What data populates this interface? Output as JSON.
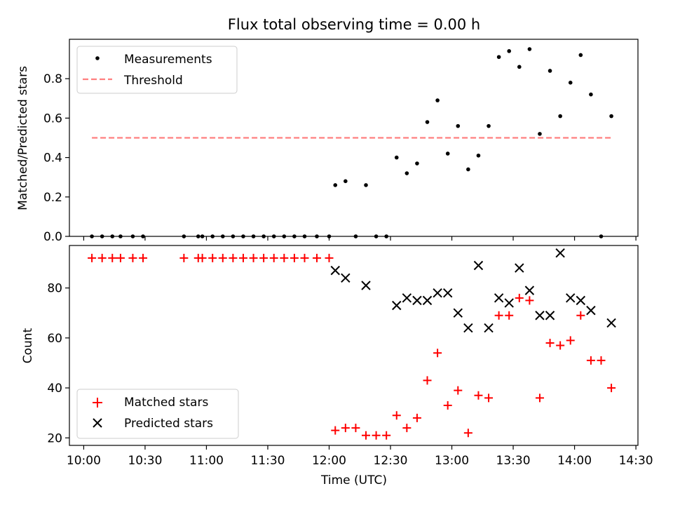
{
  "chart_data": [
    {
      "type": "scatter",
      "title": "Flux total observing time = 0.00 h",
      "ylabel": "Matched/Predicted stars",
      "xlabel": "",
      "xlim": [
        "09:53",
        "14:31"
      ],
      "ylim": [
        0,
        1.0
      ],
      "yticks": [
        "0.0",
        "0.2",
        "0.4",
        "0.6",
        "0.8"
      ],
      "legend": {
        "position": "top-left",
        "entries": [
          "Measurements",
          "Threshold"
        ]
      },
      "colors": {
        "measurements": "#000000",
        "threshold": "#ff7f7f"
      },
      "threshold": {
        "value": 0.5,
        "x_start": "10:04",
        "x_end": "14:19"
      },
      "series": [
        {
          "name": "Measurements",
          "x": [
            "10:04",
            "10:09",
            "10:14",
            "10:18",
            "10:24",
            "10:29",
            "10:49",
            "10:56",
            "10:58",
            "11:03",
            "11:08",
            "11:13",
            "11:18",
            "11:23",
            "11:28",
            "11:33",
            "11:38",
            "11:43",
            "11:48",
            "11:54",
            "12:00",
            "12:03",
            "12:08",
            "12:13",
            "12:18",
            "12:23",
            "12:28",
            "12:33",
            "12:38",
            "12:43",
            "12:48",
            "12:53",
            "12:58",
            "13:03",
            "13:08",
            "13:13",
            "13:18",
            "13:23",
            "13:28",
            "13:33",
            "13:38",
            "13:43",
            "13:48",
            "13:53",
            "13:58",
            "14:03",
            "14:08",
            "14:13",
            "14:18"
          ],
          "y": [
            0,
            0,
            0,
            0,
            0,
            0,
            0,
            0,
            0,
            0,
            0,
            0,
            0,
            0,
            0,
            0,
            0,
            0,
            0,
            0,
            0,
            0.26,
            0.28,
            0,
            0.26,
            0,
            0,
            0.4,
            0.32,
            0.37,
            0.58,
            0.69,
            0.42,
            0.56,
            0.34,
            0.41,
            0.56,
            0.91,
            0.94,
            0.86,
            0.95,
            0.52,
            0.84,
            0.61,
            0.78,
            0.92,
            0.72,
            0,
            0.61
          ]
        }
      ]
    },
    {
      "type": "scatter",
      "xlabel": "Time (UTC)",
      "ylabel": "Count",
      "xlim": [
        "09:53",
        "14:31"
      ],
      "ylim": [
        17,
        97
      ],
      "xticks": [
        "10:00",
        "10:30",
        "11:00",
        "11:30",
        "12:00",
        "12:30",
        "13:00",
        "13:30",
        "14:00",
        "14:30"
      ],
      "yticks": [
        "20",
        "40",
        "60",
        "80"
      ],
      "legend": {
        "position": "bottom-left",
        "entries": [
          "Matched stars",
          "Predicted stars"
        ]
      },
      "colors": {
        "matched": "#ff0000",
        "predicted": "#000000"
      },
      "series": [
        {
          "name": "Matched stars",
          "x": [
            "10:04",
            "10:09",
            "10:14",
            "10:18",
            "10:24",
            "10:29",
            "10:49",
            "10:56",
            "10:58",
            "11:03",
            "11:08",
            "11:13",
            "11:18",
            "11:23",
            "11:28",
            "11:33",
            "11:38",
            "11:43",
            "11:48",
            "11:54",
            "12:00",
            "12:03",
            "12:08",
            "12:13",
            "12:18",
            "12:23",
            "12:28",
            "12:33",
            "12:38",
            "12:43",
            "12:48",
            "12:53",
            "12:58",
            "13:03",
            "13:08",
            "13:13",
            "13:18",
            "13:23",
            "13:28",
            "13:33",
            "13:38",
            "13:43",
            "13:48",
            "13:53",
            "13:58",
            "14:03",
            "14:08",
            "14:13",
            "14:18"
          ],
          "y": [
            92,
            92,
            92,
            92,
            92,
            92,
            92,
            92,
            92,
            92,
            92,
            92,
            92,
            92,
            92,
            92,
            92,
            92,
            92,
            92,
            92,
            23,
            24,
            24,
            21,
            21,
            21,
            29,
            24,
            28,
            43,
            54,
            33,
            39,
            22,
            37,
            36,
            69,
            69,
            76,
            75,
            36,
            58,
            57,
            59,
            69,
            51,
            51,
            40
          ]
        },
        {
          "name": "Predicted stars",
          "x": [
            "12:03",
            "12:08",
            "12:18",
            "12:33",
            "12:38",
            "12:43",
            "12:48",
            "12:53",
            "12:58",
            "13:03",
            "13:08",
            "13:13",
            "13:18",
            "13:23",
            "13:28",
            "13:33",
            "13:38",
            "13:43",
            "13:48",
            "13:53",
            "13:58",
            "14:03",
            "14:08",
            "14:18"
          ],
          "y": [
            87,
            84,
            81,
            73,
            76,
            75,
            75,
            78,
            78,
            70,
            64,
            89,
            64,
            76,
            74,
            88,
            79,
            69,
            69,
            94,
            76,
            75,
            71,
            66
          ]
        }
      ]
    }
  ]
}
